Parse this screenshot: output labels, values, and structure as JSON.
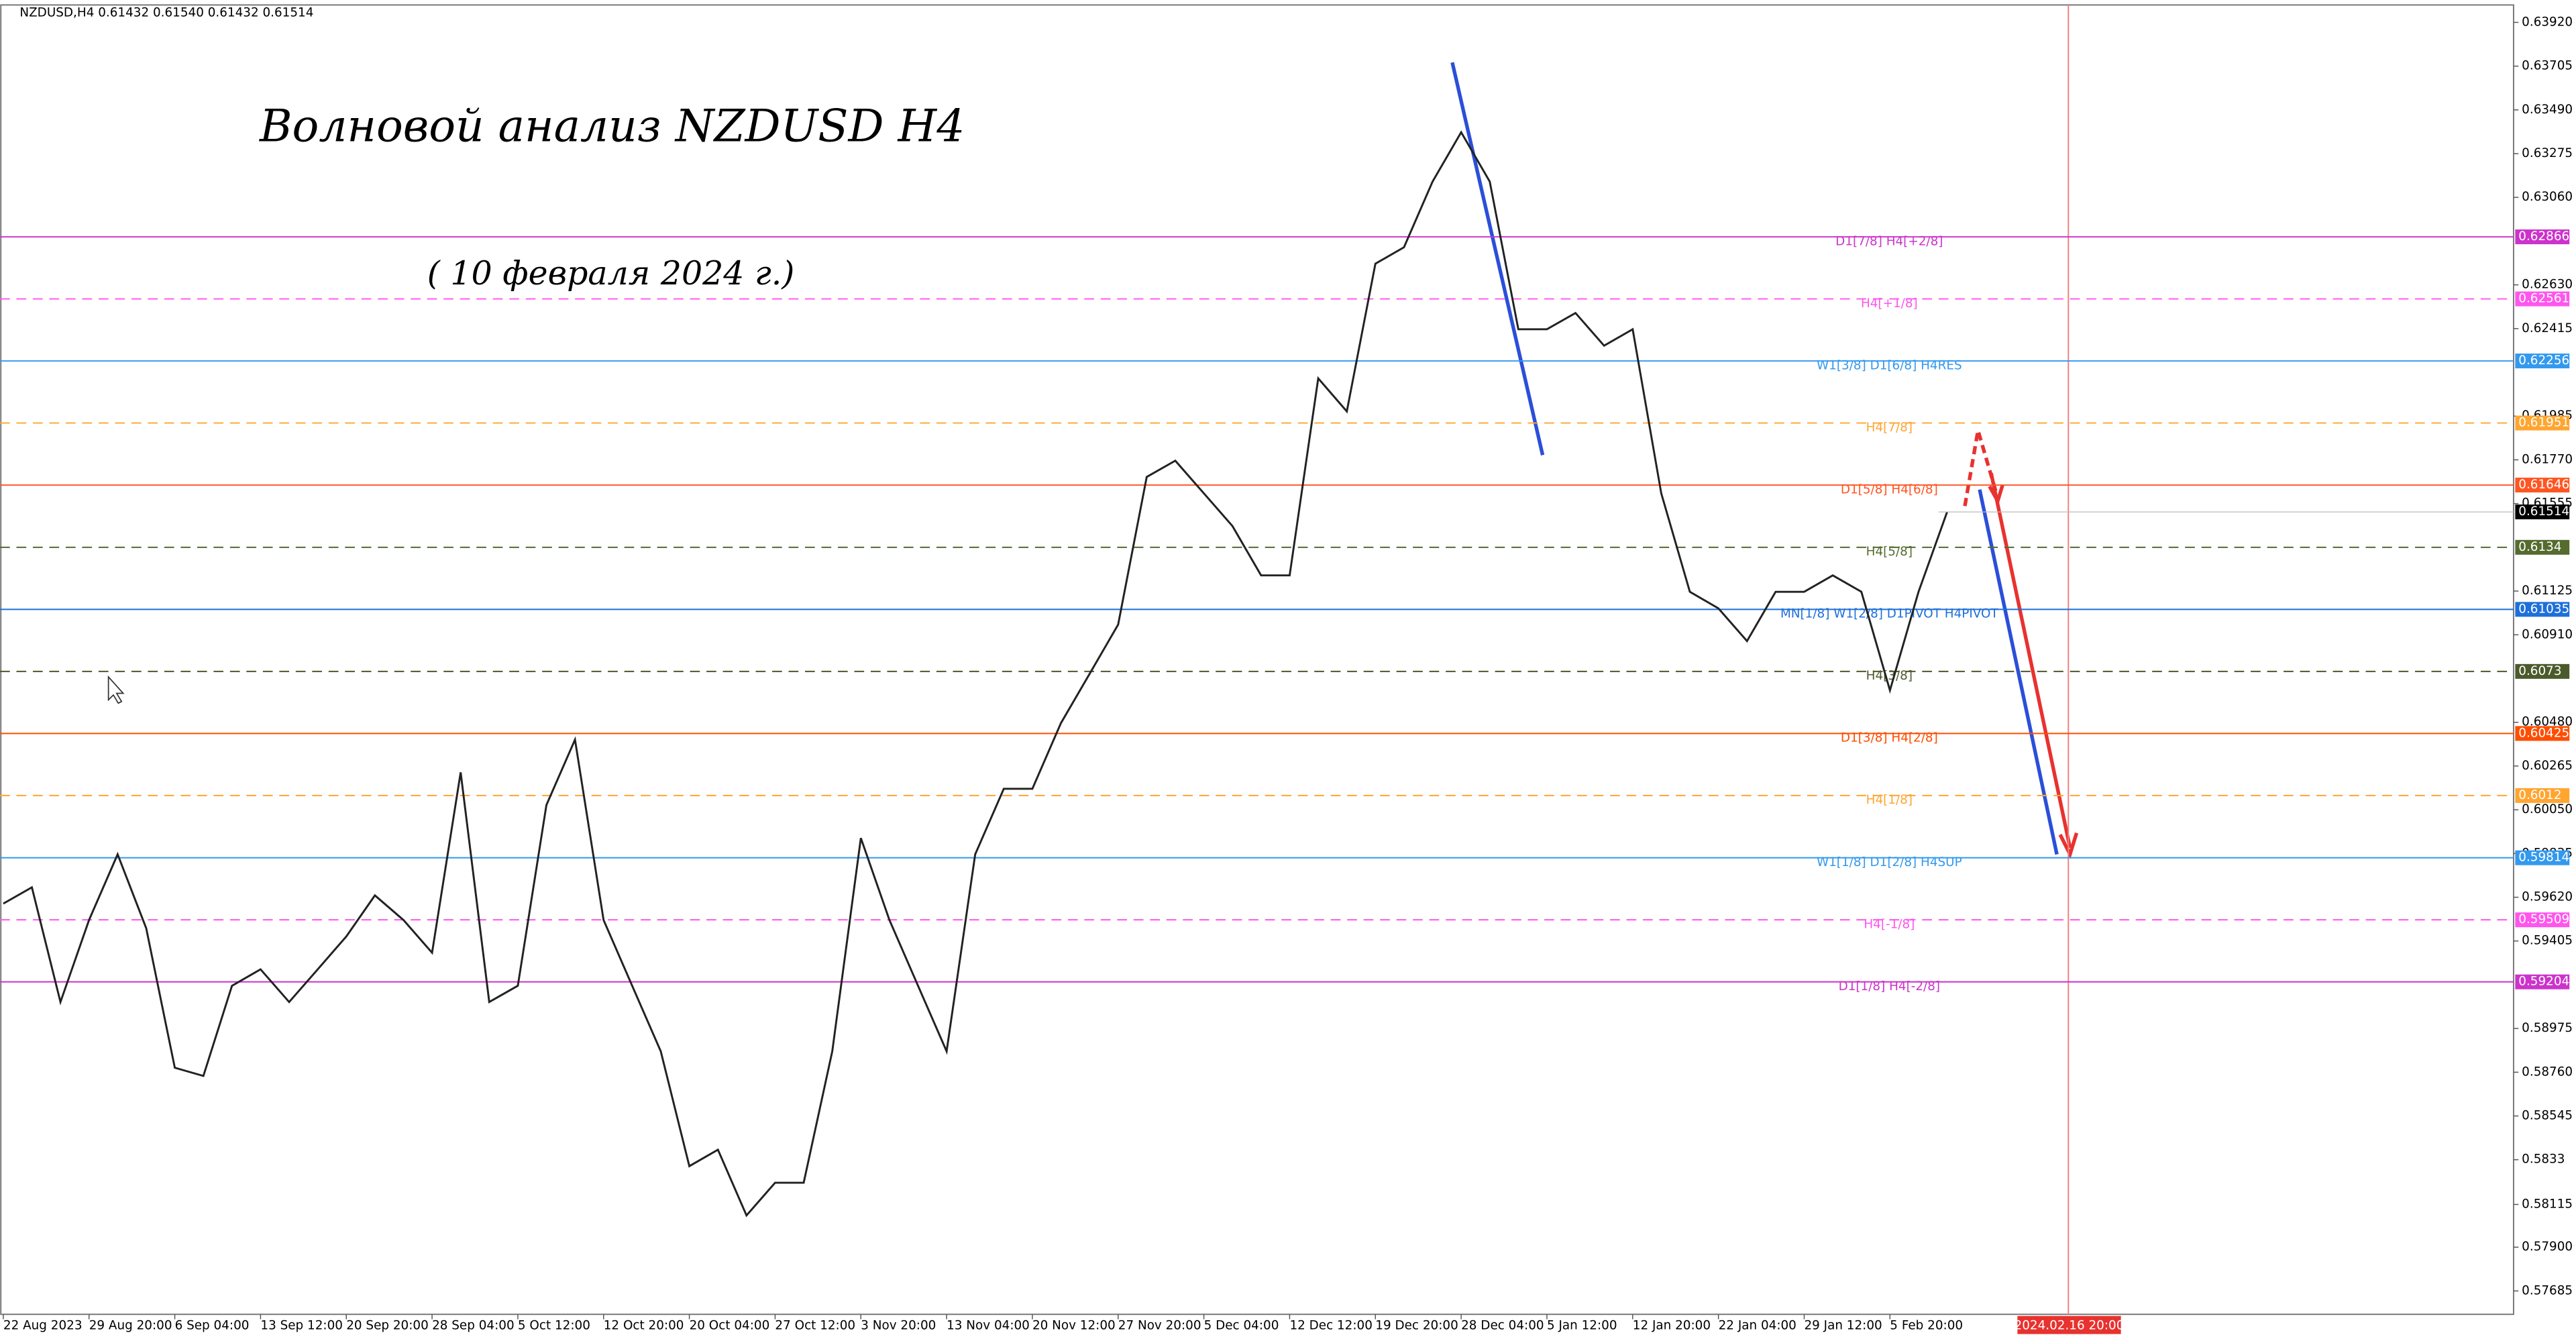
{
  "chart_data": {
    "type": "line",
    "header": "NZDUSD,H4  0.61432 0.61540 0.61432 0.61514",
    "title": "Волновой анализ NZDUSD H4",
    "subtitle": "( 10 февраля 2024 г.)",
    "color": "#222222",
    "categories": [
      "22 Aug 2023",
      null,
      null,
      "29 Aug 20:00",
      null,
      null,
      "6 Sep 04:00",
      null,
      null,
      "13 Sep 12:00",
      null,
      null,
      "20 Sep 20:00",
      null,
      null,
      "28 Sep 04:00",
      null,
      null,
      "5 Oct 12:00",
      null,
      null,
      "12 Oct 20:00",
      null,
      null,
      "20 Oct 04:00",
      null,
      null,
      "27 Oct 12:00",
      null,
      null,
      "3 Nov 20:00",
      null,
      null,
      "13 Nov 04:00",
      null,
      null,
      "20 Nov 12:00",
      null,
      null,
      "27 Nov 20:00",
      null,
      null,
      "5 Dec 04:00",
      null,
      null,
      "12 Dec 12:00",
      null,
      null,
      "19 Dec 20:00",
      null,
      null,
      "28 Dec 04:00",
      null,
      null,
      "5 Jan 12:00",
      null,
      null,
      "12 Jan 20:00",
      null,
      null,
      "22 Jan 04:00",
      null,
      null,
      "29 Jan 12:00",
      null,
      null,
      "5 Feb 20:00",
      null,
      null
    ],
    "values": [
      0.59589,
      0.59669,
      0.59105,
      0.59508,
      0.59831,
      0.59468,
      0.58782,
      0.58742,
      0.59185,
      0.59266,
      0.59105,
      0.59266,
      0.59427,
      0.59629,
      0.59508,
      0.59347,
      0.60234,
      0.59105,
      0.59185,
      0.60073,
      0.60395,
      0.59508,
      0.59185,
      0.58863,
      0.58298,
      0.58379,
      0.58056,
      0.58217,
      0.58217,
      0.58863,
      0.59911,
      0.59508,
      0.59185,
      0.58863,
      0.59831,
      0.60153,
      0.60153,
      0.60476,
      0.60718,
      0.6096,
      0.61686,
      0.61766,
      0.61605,
      0.61444,
      0.61202,
      0.61202,
      0.6217,
      0.62008,
      0.62734,
      0.62815,
      0.63138,
      0.6338,
      0.63138,
      0.62412,
      0.62412,
      0.62492,
      0.62331,
      0.62412,
      0.61605,
      0.61121,
      0.6104,
      0.60879,
      0.61121,
      0.61121,
      0.61202,
      0.61121,
      0.60637,
      0.61121,
      0.61514
    ],
    "ylim": [
      0.5757,
      0.6403
    ],
    "yticks": [
      {
        "value": 0.6392,
        "label": "0.63920"
      },
      0.63705,
      {
        "value": 0.6349,
        "label": "0.63490"
      },
      0.63275,
      {
        "value": 0.6306,
        "label": "0.63060"
      },
      {
        "value": 0.6263,
        "label": "0.62630"
      },
      0.62415,
      0.61985,
      {
        "value": 0.6177,
        "label": "0.61770"
      },
      0.61555,
      0.61125,
      {
        "value": 0.6091,
        "label": "0.60910"
      },
      {
        "value": 0.6048,
        "label": "0.60480"
      },
      0.60265,
      {
        "value": 0.6005,
        "label": "0.60050"
      },
      0.59835,
      {
        "value": 0.5962,
        "label": "0.59620"
      },
      0.59405,
      0.58975,
      {
        "value": 0.5876,
        "label": "0.58760"
      },
      0.58545,
      0.5833,
      {
        "value": 0.5811,
        "label": "0.58115"
      },
      {
        "value": 0.579,
        "label": "0.57900"
      },
      0.57685
    ],
    "levels": [
      {
        "value": 0.62866,
        "name": "D1[7/8] H4[+2/8]",
        "color": "#cc33cc",
        "dashed": false
      },
      {
        "value": 0.62561,
        "name": "H4[+1/8]",
        "color": "#ff55ee",
        "dashed": true
      },
      {
        "value": 0.62256,
        "name": "W1[3/8] D1[6/8] H4RES",
        "color": "#3399ee",
        "dashed": false
      },
      {
        "value": 0.61951,
        "name": "H4[7/8]",
        "color": "#ffa530",
        "dashed": true
      },
      {
        "value": 0.61646,
        "name": "D1[5/8] H4[6/8]",
        "color": "#ff5522",
        "dashed": false
      },
      {
        "value": 0.6134,
        "name": "H4[5/8]",
        "color": "#556b2f",
        "dashed": true
      },
      {
        "value": 0.61035,
        "name": "MN[1/8] W1[2/8] D1PIVOT H4PIVOT",
        "color": "#1e6fd9",
        "dashed": false
      },
      {
        "value": 0.6073,
        "name": "H4[3/8]",
        "color": "#4b5a2a",
        "dashed": true
      },
      {
        "value": 0.60425,
        "name": "D1[3/8] H4[2/8]",
        "color": "#ff4d00",
        "dashed": false
      },
      {
        "value": 0.6012,
        "name": "H4[1/8]",
        "color": "#ffa530",
        "dashed": true
      },
      {
        "value": 0.59814,
        "name": "W1[1/8] D1[2/8] H4SUP",
        "color": "#3399ee",
        "dashed": false
      },
      {
        "value": 0.59509,
        "name": "H4[-1/8]",
        "color": "#ff55ee",
        "dashed": true
      },
      {
        "value": 0.59204,
        "name": "D1[1/8] H4[-2/8]",
        "color": "#cc33cc",
        "dashed": false
      }
    ],
    "last_price": 0.61514,
    "cursor_time": "2024.02.16 20:00"
  }
}
